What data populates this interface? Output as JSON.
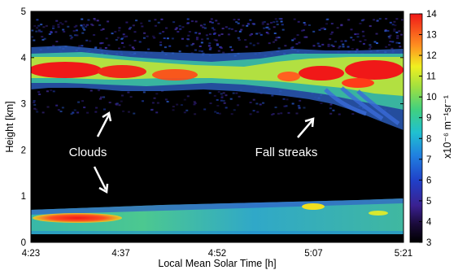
{
  "chart_data": {
    "type": "heatmap",
    "title": "",
    "xlabel": "Local Mean Solar Time [h]",
    "ylabel": "Height [km]",
    "x_tick_labels": [
      "4:23",
      "4:37",
      "4:52",
      "5:07",
      "5:21"
    ],
    "x_ticks_minutes": [
      263,
      277,
      292,
      307,
      321
    ],
    "xlim_minutes": [
      263,
      321
    ],
    "ylim": [
      0,
      5
    ],
    "y_ticks": [
      0,
      1,
      2,
      3,
      4,
      5
    ],
    "colorbar": {
      "label": "x10⁻⁶ m⁻¹sr⁻¹",
      "range": [
        3,
        14
      ],
      "ticks": [
        3,
        4,
        5,
        6,
        7,
        8,
        9,
        10,
        11,
        12,
        13,
        14
      ],
      "colormap": "jet"
    },
    "regions": [
      {
        "name": "upper cloud layer",
        "x_start_minutes": 263,
        "x_end_minutes": 321,
        "top_km": 4.3,
        "base_km": 3.1,
        "typical_value": 12
      },
      {
        "name": "lower layer",
        "x_start_minutes": 263,
        "x_end_minutes": 321,
        "top_km": 0.85,
        "base_km": 0.2,
        "typical_value": 8.5
      }
    ],
    "annotations": [
      {
        "text": "Clouds",
        "x_minutes": 270,
        "y_km": 2.0
      },
      {
        "text": "Fall streaks",
        "x_minutes": 308,
        "y_km": 2.0
      }
    ],
    "grid": false,
    "legend": "colorbar right"
  }
}
